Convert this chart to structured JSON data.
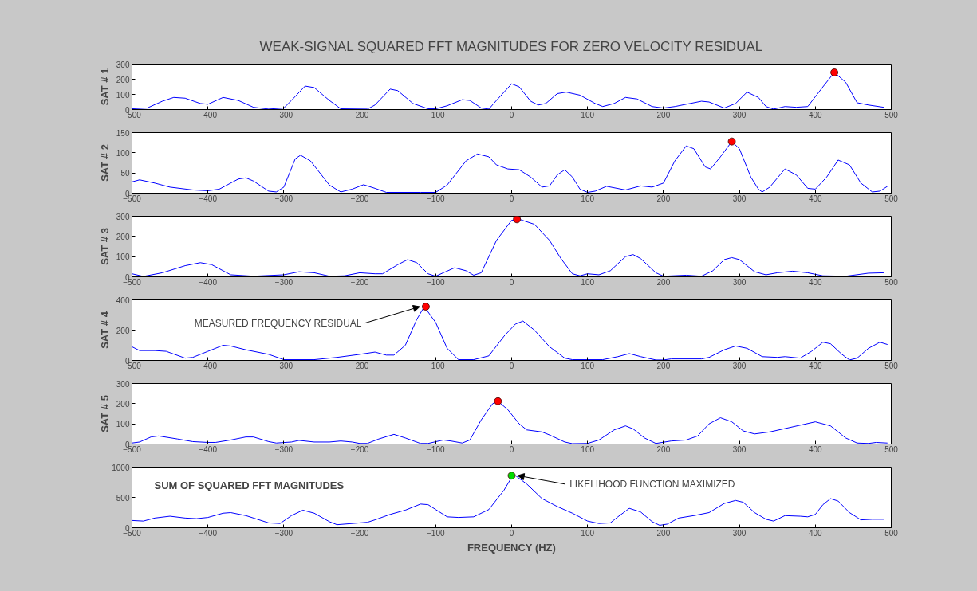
{
  "chart_data": [
    {
      "type": "line",
      "title": "WEAK-SIGNAL SQUARED FFT MAGNITUDES FOR ZERO VELOCITY RESIDUAL",
      "ylabel": "SAT # 1",
      "xlim": [
        -500,
        500
      ],
      "xticks": [
        -500,
        -400,
        -300,
        -200,
        -100,
        0,
        100,
        200,
        300,
        400,
        500
      ],
      "ylim": [
        0,
        300
      ],
      "yticks": [
        0,
        100,
        200,
        300
      ],
      "series": [
        {
          "type": "line",
          "color": "#0000ff",
          "x": [
            -500,
            -480,
            -460,
            -445,
            -430,
            -410,
            -400,
            -380,
            -360,
            -340,
            -320,
            -300,
            -290,
            -272,
            -260,
            -240,
            -225,
            -190,
            -180,
            -160,
            -150,
            -130,
            -110,
            -100,
            -85,
            -65,
            -55,
            -40,
            -30,
            -20,
            0,
            10,
            25,
            35,
            45,
            60,
            72,
            90,
            110,
            120,
            135,
            150,
            165,
            185,
            200,
            215,
            230,
            250,
            260,
            280,
            295,
            310,
            325,
            335,
            345,
            360,
            375,
            390,
            410,
            425,
            440,
            455,
            470,
            490
          ],
          "values": [
            5,
            10,
            55,
            80,
            75,
            40,
            35,
            80,
            60,
            15,
            3,
            10,
            60,
            155,
            145,
            60,
            5,
            3,
            30,
            135,
            125,
            40,
            5,
            5,
            25,
            65,
            60,
            10,
            3,
            60,
            170,
            150,
            55,
            30,
            40,
            105,
            115,
            95,
            40,
            20,
            40,
            80,
            70,
            20,
            10,
            20,
            35,
            55,
            50,
            10,
            40,
            115,
            80,
            20,
            3,
            20,
            15,
            20,
            150,
            245,
            180,
            45,
            30,
            15
          ]
        },
        {
          "type": "scatter",
          "color": "#ff0000",
          "marker": "circle",
          "x": [
            425
          ],
          "values": [
            245
          ]
        }
      ]
    },
    {
      "type": "line",
      "ylabel": "SAT # 2",
      "xlim": [
        -500,
        500
      ],
      "xticks": [
        -500,
        -400,
        -300,
        -200,
        -100,
        0,
        100,
        200,
        300,
        400,
        500
      ],
      "ylim": [
        0,
        150
      ],
      "yticks": [
        0,
        50,
        100,
        150
      ],
      "series": [
        {
          "type": "line",
          "color": "#0000ff",
          "x": [
            -500,
            -490,
            -470,
            -450,
            -420,
            -400,
            -385,
            -360,
            -350,
            -340,
            -320,
            -310,
            -300,
            -285,
            -278,
            -265,
            -240,
            -225,
            -210,
            -195,
            -180,
            -165,
            -120,
            -100,
            -85,
            -60,
            -45,
            -30,
            -20,
            -5,
            10,
            25,
            40,
            50,
            60,
            70,
            80,
            90,
            100,
            110,
            125,
            150,
            170,
            185,
            200,
            215,
            230,
            240,
            255,
            262,
            275,
            290,
            300,
            315,
            325,
            330,
            340,
            360,
            375,
            390,
            400,
            415,
            430,
            445,
            460,
            475,
            485,
            495
          ],
          "values": [
            28,
            33,
            25,
            15,
            8,
            6,
            10,
            35,
            38,
            30,
            5,
            3,
            15,
            85,
            94,
            80,
            20,
            3,
            10,
            21,
            12,
            2,
            2,
            2,
            20,
            80,
            97,
            90,
            70,
            60,
            58,
            40,
            15,
            18,
            45,
            58,
            40,
            10,
            2,
            5,
            17,
            8,
            18,
            15,
            25,
            80,
            117,
            110,
            65,
            60,
            90,
            128,
            110,
            40,
            10,
            3,
            15,
            60,
            45,
            12,
            10,
            40,
            82,
            70,
            25,
            3,
            5,
            17
          ]
        },
        {
          "type": "scatter",
          "color": "#ff0000",
          "marker": "circle",
          "x": [
            290
          ],
          "values": [
            128
          ]
        }
      ]
    },
    {
      "type": "line",
      "ylabel": "SAT # 3",
      "xlim": [
        -500,
        500
      ],
      "xticks": [
        -500,
        -400,
        -300,
        -200,
        -100,
        0,
        100,
        200,
        300,
        400,
        500
      ],
      "ylim": [
        0,
        300
      ],
      "yticks": [
        0,
        100,
        200,
        300
      ],
      "series": [
        {
          "type": "line",
          "color": "#0000ff",
          "x": [
            -500,
            -485,
            -460,
            -430,
            -410,
            -395,
            -370,
            -340,
            -300,
            -280,
            -260,
            -240,
            -220,
            -200,
            -180,
            -170,
            -150,
            -137,
            -125,
            -110,
            -100,
            -90,
            -75,
            -60,
            -50,
            -40,
            -20,
            0,
            10,
            30,
            50,
            65,
            80,
            90,
            100,
            115,
            130,
            150,
            160,
            170,
            190,
            200,
            230,
            250,
            265,
            280,
            290,
            300,
            320,
            335,
            350,
            370,
            390,
            410,
            440,
            470,
            490
          ],
          "values": [
            15,
            2,
            20,
            55,
            70,
            60,
            10,
            3,
            10,
            25,
            20,
            3,
            5,
            20,
            15,
            15,
            60,
            85,
            70,
            15,
            3,
            20,
            45,
            30,
            8,
            20,
            180,
            280,
            285,
            260,
            180,
            90,
            15,
            5,
            15,
            10,
            30,
            100,
            110,
            90,
            20,
            3,
            8,
            3,
            30,
            85,
            95,
            85,
            25,
            10,
            20,
            28,
            20,
            5,
            3,
            18,
            20
          ]
        },
        {
          "type": "scatter",
          "color": "#ff0000",
          "marker": "circle",
          "x": [
            7
          ],
          "values": [
            285
          ]
        }
      ]
    },
    {
      "type": "line",
      "ylabel": "SAT # 4",
      "xlim": [
        -500,
        500
      ],
      "xticks": [
        -500,
        -400,
        -300,
        -200,
        -100,
        0,
        100,
        200,
        300,
        400,
        500
      ],
      "ylim": [
        0,
        400
      ],
      "yticks": [
        0,
        200,
        400
      ],
      "annotations": [
        {
          "text": "MEASURED FREQUENCY RESIDUAL",
          "x": -113,
          "y": 355
        }
      ],
      "series": [
        {
          "type": "line",
          "color": "#0000ff",
          "x": [
            -500,
            -490,
            -470,
            -455,
            -430,
            -420,
            -400,
            -380,
            -370,
            -350,
            -320,
            -300,
            -260,
            -230,
            -200,
            -180,
            -165,
            -155,
            -140,
            -125,
            -115,
            -100,
            -85,
            -70,
            -50,
            -30,
            -10,
            5,
            15,
            30,
            50,
            70,
            80,
            120,
            140,
            155,
            170,
            190,
            200,
            210,
            250,
            260,
            280,
            295,
            310,
            330,
            350,
            360,
            380,
            395,
            410,
            420,
            435,
            445,
            455,
            470,
            485,
            495
          ],
          "values": [
            90,
            65,
            65,
            60,
            15,
            20,
            60,
            100,
            95,
            70,
            40,
            5,
            5,
            20,
            40,
            55,
            35,
            35,
            100,
            270,
            355,
            250,
            80,
            5,
            5,
            30,
            160,
            240,
            260,
            200,
            90,
            15,
            5,
            5,
            25,
            45,
            25,
            3,
            3,
            10,
            10,
            20,
            70,
            95,
            80,
            25,
            20,
            25,
            15,
            60,
            120,
            110,
            40,
            3,
            15,
            80,
            120,
            105
          ]
        },
        {
          "type": "scatter",
          "color": "#ff0000",
          "marker": "circle",
          "x": [
            -113
          ],
          "values": [
            355
          ]
        }
      ]
    },
    {
      "type": "line",
      "ylabel": "SAT # 5",
      "xlim": [
        -500,
        500
      ],
      "xticks": [
        -500,
        -400,
        -300,
        -200,
        -100,
        0,
        100,
        200,
        300,
        400,
        500
      ],
      "ylim": [
        0,
        300
      ],
      "yticks": [
        0,
        100,
        200,
        300
      ],
      "series": [
        {
          "type": "line",
          "color": "#0000ff",
          "x": [
            -500,
            -490,
            -475,
            -465,
            -440,
            -420,
            -400,
            -390,
            -370,
            -350,
            -340,
            -320,
            -310,
            -290,
            -280,
            -260,
            -240,
            -225,
            -210,
            -200,
            -190,
            -175,
            -155,
            -140,
            -120,
            -110,
            -90,
            -80,
            -65,
            -55,
            -40,
            -25,
            -18,
            -5,
            10,
            20,
            40,
            50,
            70,
            80,
            100,
            115,
            135,
            150,
            160,
            175,
            190,
            210,
            230,
            245,
            260,
            275,
            290,
            305,
            320,
            340,
            400,
            420,
            440,
            455,
            470,
            480,
            495
          ],
          "values": [
            5,
            10,
            35,
            40,
            25,
            12,
            8,
            8,
            20,
            35,
            35,
            12,
            5,
            10,
            18,
            10,
            10,
            15,
            10,
            3,
            3,
            25,
            48,
            30,
            3,
            3,
            20,
            15,
            5,
            20,
            120,
            200,
            212,
            170,
            100,
            70,
            60,
            45,
            10,
            2,
            3,
            20,
            70,
            90,
            75,
            30,
            3,
            15,
            20,
            40,
            100,
            130,
            110,
            65,
            50,
            60,
            110,
            90,
            30,
            5,
            3,
            8,
            5
          ]
        },
        {
          "type": "scatter",
          "color": "#ff0000",
          "marker": "circle",
          "x": [
            -18
          ],
          "values": [
            212
          ]
        }
      ]
    },
    {
      "type": "line",
      "xlabel": "FREQUENCY (HZ)",
      "xlim": [
        -500,
        500
      ],
      "xticks": [
        -500,
        -400,
        -300,
        -200,
        -100,
        0,
        100,
        200,
        300,
        400,
        500
      ],
      "ylim": [
        0,
        1000
      ],
      "yticks": [
        0,
        500,
        1000
      ],
      "annotations": [
        "SUM OF SQUARED FFT MAGNITUDES",
        {
          "text": "LIKELIHOOD FUNCTION MAXIMIZED",
          "x": 0,
          "y": 860
        }
      ],
      "series": [
        {
          "type": "line",
          "color": "#0000ff",
          "x": [
            -500,
            -485,
            -470,
            -450,
            -430,
            -415,
            -400,
            -380,
            -370,
            -350,
            -320,
            -305,
            -290,
            -275,
            -260,
            -240,
            -230,
            -220,
            -200,
            -190,
            -180,
            -160,
            -140,
            -120,
            -110,
            -100,
            -85,
            -70,
            -50,
            -30,
            -10,
            0,
            5,
            20,
            40,
            60,
            80,
            100,
            115,
            130,
            140,
            155,
            170,
            185,
            195,
            205,
            220,
            240,
            260,
            280,
            295,
            305,
            320,
            335,
            345,
            360,
            380,
            390,
            400,
            410,
            420,
            430,
            445,
            460,
            475,
            490
          ],
          "values": [
            120,
            110,
            160,
            190,
            160,
            150,
            170,
            240,
            250,
            200,
            80,
            70,
            200,
            290,
            240,
            100,
            50,
            60,
            80,
            90,
            130,
            220,
            290,
            390,
            380,
            300,
            180,
            170,
            180,
            300,
            620,
            830,
            860,
            720,
            480,
            350,
            240,
            110,
            70,
            80,
            180,
            320,
            260,
            100,
            40,
            60,
            160,
            200,
            250,
            400,
            450,
            420,
            250,
            140,
            110,
            200,
            190,
            180,
            220,
            380,
            480,
            440,
            250,
            130,
            140,
            140
          ]
        },
        {
          "type": "scatter",
          "color": "#00dd00",
          "marker": "circle",
          "x": [
            0
          ],
          "values": [
            860
          ]
        }
      ]
    }
  ]
}
